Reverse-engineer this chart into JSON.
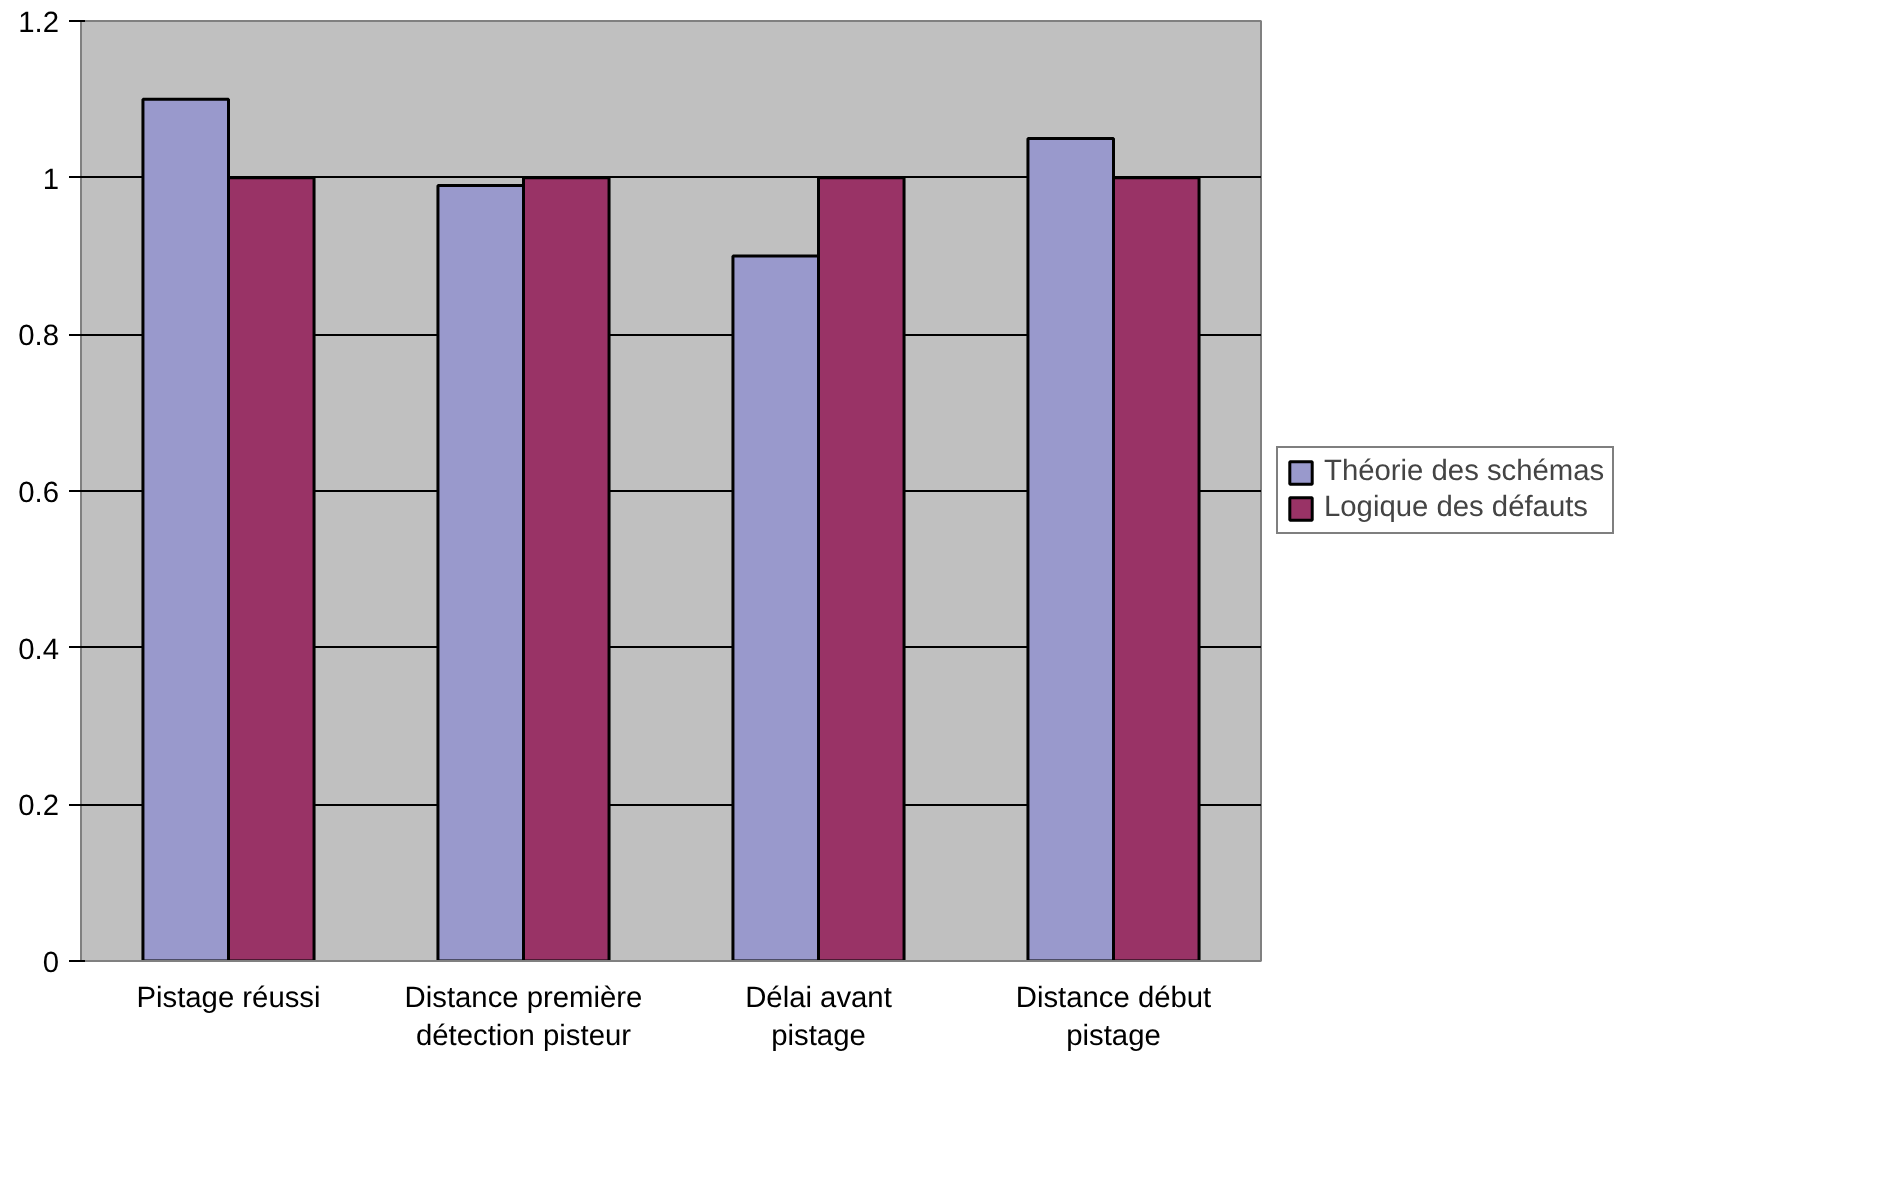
{
  "chart_data": {
    "type": "bar",
    "categories": [
      "Pistage réussi",
      "Distance première détection pisteur",
      "Délai avant pistage",
      "Distance début pistage"
    ],
    "series": [
      {
        "name": "Théorie des schémas",
        "color": "#9999cc",
        "values": [
          1.1,
          0.99,
          0.9,
          1.05
        ]
      },
      {
        "name": "Logique des défauts",
        "color": "#993366",
        "values": [
          1.0,
          1.0,
          1.0,
          1.0
        ]
      }
    ],
    "ylim": [
      0,
      1.2
    ],
    "yticks": [
      0,
      0.2,
      0.4,
      0.6,
      0.8,
      1,
      1.2
    ],
    "grid": "y",
    "legend": "right"
  }
}
